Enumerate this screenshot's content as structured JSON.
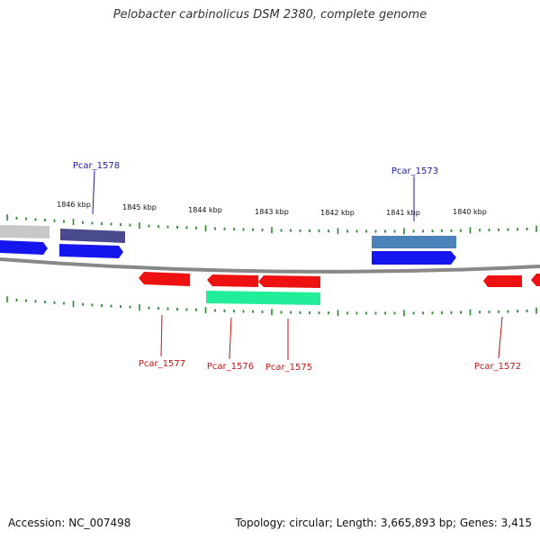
{
  "title": "Pelobacter carbinolicus DSM 2380, complete genome",
  "footer": {
    "accession": "Accession: NC_007498",
    "summary": "Topology: circular; Length: 3,665,893 bp; Genes: 3,415"
  },
  "colors": {
    "backbone": "#888888",
    "tick": "#2a8a2a",
    "forward_label": "#1a1aa8",
    "reverse_label": "#cc1111",
    "gene_red": "#ee1111",
    "gene_blue": "#1515ee",
    "gene_navy": "#4a4a8e",
    "gene_steel": "#4b82b8",
    "gene_gray": "#c8c8c8",
    "gene_green": "#22ee99"
  },
  "scale": {
    "unit": "kbp",
    "tick_labels": [
      "1846 kbp",
      "1845 kbp",
      "1844 kbp",
      "1843 kbp",
      "1842 kbp",
      "1841 kbp",
      "1840 kbp"
    ]
  },
  "genes": {
    "forward_labeled": [
      "Pcar_1578",
      "Pcar_1573"
    ],
    "reverse_labeled": [
      "Pcar_1577",
      "Pcar_1576",
      "Pcar_1575",
      "Pcar_1572"
    ]
  }
}
